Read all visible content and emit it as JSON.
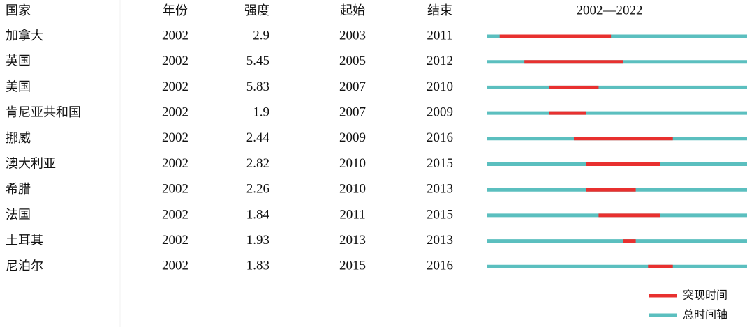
{
  "table": {
    "columns": [
      "国家",
      "年份",
      "强度",
      "起始",
      "结束"
    ],
    "timeline_header": "2002—2022",
    "xlim": [
      2002,
      2022
    ],
    "rows": [
      [
        "加拿大",
        2002,
        2.9,
        2003,
        2011
      ],
      [
        "英国",
        2002,
        5.45,
        2005,
        2012
      ],
      [
        "美国",
        2002,
        5.83,
        2007,
        2010
      ],
      [
        "肯尼亚共和国",
        2002,
        1.9,
        2007,
        2009
      ],
      [
        "挪威",
        2002,
        2.44,
        2009,
        2016
      ],
      [
        "澳大利亚",
        2002,
        2.82,
        2010,
        2015
      ],
      [
        "希腊",
        2002,
        2.26,
        2010,
        2013
      ],
      [
        "法国",
        2002,
        1.84,
        2011,
        2015
      ],
      [
        "土耳其",
        2002,
        1.93,
        2013,
        2013
      ],
      [
        "尼泊尔",
        2002,
        1.83,
        2015,
        2016
      ]
    ],
    "burst_color": "#e8302f",
    "total_color": "#5bbfbf"
  },
  "legend": {
    "burst": "突现时间",
    "total": "总时间轴"
  }
}
